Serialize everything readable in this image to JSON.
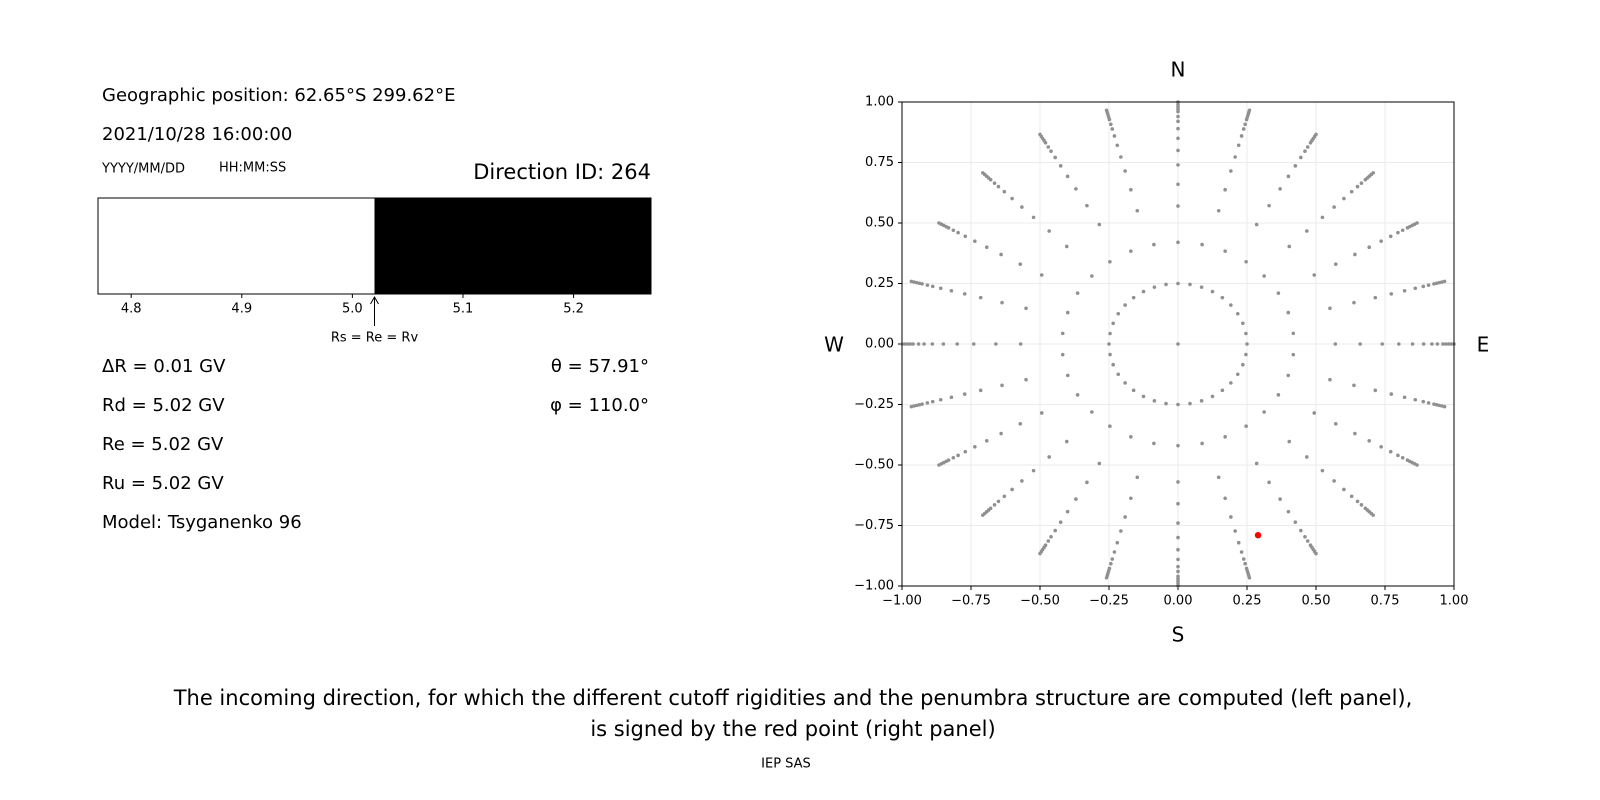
{
  "info": {
    "position": "Geographic position: 62.65°S 299.62°E",
    "datetime": "2021/10/28 16:00:00",
    "date_format": "YYYY/MM/DD",
    "time_format": "HH:MM:SS",
    "direction_id": "Direction ID: 264",
    "lines_left": [
      "ΔR = 0.01 GV",
      "Rd = 5.02 GV",
      "Re = 5.02 GV",
      "Ru = 5.02 GV",
      "Model: Tsyganenko 96"
    ],
    "lines_right": [
      "θ = 57.91°",
      "φ = 110.0°"
    ]
  },
  "chart_data": [
    {
      "type": "penumbra",
      "xlim": [
        4.77,
        5.27
      ],
      "xticks": [
        4.8,
        4.9,
        {
          "value": 5,
          "label": "5.0"
        },
        5.1,
        5.2
      ],
      "regions": [
        {
          "from": 4.77,
          "to": 5.02,
          "color": "#ffffff"
        },
        {
          "from": 5.02,
          "to": 5.27,
          "color": "#000000"
        }
      ],
      "annotation": {
        "x": 5.02,
        "text": "Rs = Re = Rv"
      }
    },
    {
      "type": "scatter",
      "xlim": [
        -1,
        1
      ],
      "ylim": [
        -1,
        1
      ],
      "xticks": [
        {
          "value": -1,
          "label": "−1.00"
        },
        {
          "value": -0.75,
          "label": "−0.75"
        },
        {
          "value": -0.5,
          "label": "−0.50"
        },
        {
          "value": -0.25,
          "label": "−0.25"
        },
        {
          "value": 0,
          "label": "0.00"
        },
        {
          "value": 0.25,
          "label": "0.25"
        },
        {
          "value": 0.5,
          "label": "0.50"
        },
        {
          "value": 0.75,
          "label": "0.75"
        },
        {
          "value": 1,
          "label": "1.00"
        }
      ],
      "yticks": [
        {
          "value": -1,
          "label": "−1.00"
        },
        {
          "value": -0.75,
          "label": "−0.75"
        },
        {
          "value": -0.5,
          "label": "−0.50"
        },
        {
          "value": -0.25,
          "label": "−0.25"
        },
        {
          "value": 0,
          "label": "0.00"
        },
        {
          "value": 0.25,
          "label": "0.25"
        },
        {
          "value": 0.5,
          "label": "0.50"
        },
        {
          "value": 0.75,
          "label": "0.75"
        },
        {
          "value": 1,
          "label": "1.00"
        }
      ],
      "grid": true,
      "color": "#909090",
      "rings": [
        {
          "radius": 0,
          "step": 360
        },
        {
          "radius": 0.25,
          "step": 10
        },
        {
          "radius": 0.42,
          "step": 12
        },
        {
          "radius": 0.57,
          "step": 15
        },
        {
          "radius": 0.66,
          "step": 15
        },
        {
          "radius": 0.74,
          "step": 15
        },
        {
          "radius": 0.8,
          "step": 15
        },
        {
          "radius": 0.85,
          "step": 15
        },
        {
          "radius": 0.89,
          "step": 15
        },
        {
          "radius": 0.92,
          "step": 15
        },
        {
          "radius": 0.94,
          "step": 15
        },
        {
          "radius": 0.96,
          "step": 15
        },
        {
          "radius": 0.97,
          "step": 15
        },
        {
          "radius": 0.98,
          "step": 15
        },
        {
          "radius": 0.99,
          "step": 15
        },
        {
          "radius": 1,
          "step": 15
        }
      ],
      "highlight": {
        "x": 0.29,
        "y": -0.79,
        "color": "#ff0000"
      },
      "compass": {
        "north": "N",
        "south": "S",
        "west": "W",
        "east": "E"
      }
    }
  ],
  "caption": [
    "The incoming direction, for which the different cutoff rigidities and the penumbra structure are computed (left panel),",
    "is signed by the red point (right panel)"
  ],
  "footer": "IEP SAS"
}
